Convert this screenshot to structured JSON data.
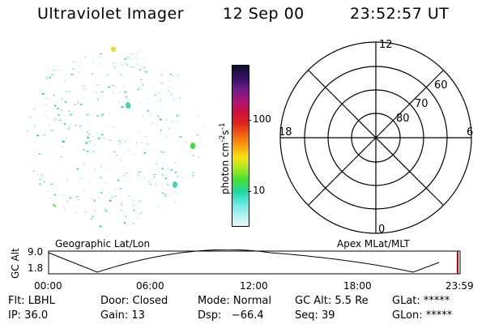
{
  "header": {
    "title": "Ultraviolet Imager",
    "date": "12 Sep 00",
    "time": "23:52:57 UT"
  },
  "colorbar": {
    "unit_label": "photon cm",
    "unit_exp1": "-2",
    "unit_mid": "s",
    "unit_exp2": "-1",
    "ticks": [
      "100",
      "10"
    ],
    "colors": [
      "#101030",
      "#301060",
      "#6a1a8a",
      "#a8147a",
      "#c81040",
      "#e02020",
      "#f06010",
      "#f8a010",
      "#f8e010",
      "#a8e820",
      "#40e030",
      "#20d8a0",
      "#60e8e0",
      "#b0f0f0",
      "#e8fafa"
    ]
  },
  "polar": {
    "labels": {
      "top": "12",
      "left": "18",
      "right": "6",
      "bottom": "0"
    },
    "rings": [
      "60",
      "70",
      "80"
    ]
  },
  "timeline": {
    "left_title": "Geographic Lat/Lon",
    "right_title": "Apex MLat/MLT",
    "y_label": "GC Alt",
    "y_ticks": [
      "9.0",
      "1.8"
    ],
    "x_ticks": [
      "00:00",
      "06:00",
      "12:00",
      "18:00",
      "23:59"
    ]
  },
  "info": {
    "flt": "Flt: LBHL",
    "ip": "IP: 36.0",
    "door": "Door: Closed",
    "gain": "Gain: 13",
    "mode": "Mode: Normal",
    "dsp": "Dsp:   −66.4",
    "gcalt": "GC Alt: 5.5 Re",
    "seq": "Seq: 39",
    "glat": "GLat: *****",
    "glon": "GLon: *****"
  }
}
